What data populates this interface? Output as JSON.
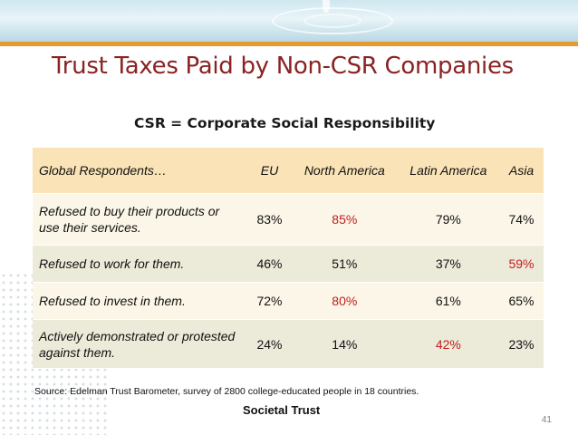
{
  "slide": {
    "title": "Trust Taxes Paid by Non-CSR Companies",
    "subtitle": "CSR = Corporate Social Responsibility",
    "source": "Source: Edelman Trust Barometer, survey of 2800 college-educated people in 18 countries.",
    "footer": "Societal Trust",
    "page_number": "41"
  },
  "table": {
    "headers": [
      "Global Respondents…",
      "EU",
      "North America",
      "Latin America",
      "Asia"
    ],
    "rows": [
      {
        "label": "Refused to buy their products or use their services.",
        "values": [
          "83%",
          "85%",
          "79%",
          "74%"
        ],
        "highlight": 1
      },
      {
        "label": "Refused to work for them.",
        "values": [
          "46%",
          "51%",
          "37%",
          "59%"
        ],
        "highlight": 3
      },
      {
        "label": "Refused to invest in them.",
        "values": [
          "72%",
          "80%",
          "61%",
          "65%"
        ],
        "highlight": 1
      },
      {
        "label": "Actively demonstrated or protested against them.",
        "values": [
          "24%",
          "14%",
          "42%",
          "23%"
        ],
        "highlight": 2
      }
    ]
  },
  "colors": {
    "title": "#8b2323",
    "accent_bar": "#e79a30",
    "header_fill": "#fae3b6",
    "highlight_text": "#c02020"
  }
}
